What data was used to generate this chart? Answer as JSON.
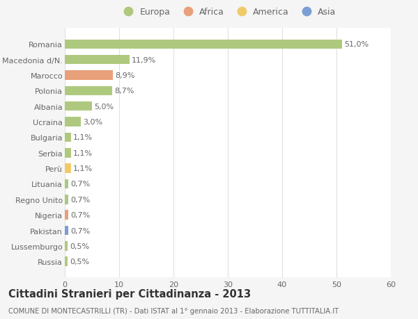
{
  "categories": [
    "Romania",
    "Macedonia d/N.",
    "Marocco",
    "Polonia",
    "Albania",
    "Ucraina",
    "Bulgaria",
    "Serbia",
    "Perù",
    "Lituania",
    "Regno Unito",
    "Nigeria",
    "Pakistan",
    "Lussemburgo",
    "Russia"
  ],
  "values": [
    51.0,
    11.9,
    8.9,
    8.7,
    5.0,
    3.0,
    1.1,
    1.1,
    1.1,
    0.7,
    0.7,
    0.7,
    0.7,
    0.5,
    0.5
  ],
  "labels": [
    "51,0%",
    "11,9%",
    "8,9%",
    "8,7%",
    "5,0%",
    "3,0%",
    "1,1%",
    "1,1%",
    "1,1%",
    "0,7%",
    "0,7%",
    "0,7%",
    "0,7%",
    "0,5%",
    "0,5%"
  ],
  "colors": [
    "#aec97e",
    "#aec97e",
    "#e8a07a",
    "#aec97e",
    "#aec97e",
    "#aec97e",
    "#aec97e",
    "#aec97e",
    "#f0c96a",
    "#aec97e",
    "#aec97e",
    "#e8a07a",
    "#7b9fd4",
    "#aec97e",
    "#aec97e"
  ],
  "legend_labels": [
    "Europa",
    "Africa",
    "America",
    "Asia"
  ],
  "legend_colors": [
    "#aec97e",
    "#e8a07a",
    "#f0c96a",
    "#7b9fd4"
  ],
  "xlim": [
    0,
    60
  ],
  "xticks": [
    0,
    10,
    20,
    30,
    40,
    50,
    60
  ],
  "title": "Cittadini Stranieri per Cittadinanza - 2013",
  "subtitle": "COMUNE DI MONTECASTRILLI (TR) - Dati ISTAT al 1° gennaio 2013 - Elaborazione TUTTITALIA.IT",
  "background_color": "#f5f5f5",
  "bar_background": "#ffffff",
  "grid_color": "#e0e0e0",
  "text_color": "#666666",
  "label_fontsize": 8.0,
  "tick_fontsize": 8.0,
  "title_fontsize": 10.5,
  "subtitle_fontsize": 7.2,
  "bar_height": 0.6
}
